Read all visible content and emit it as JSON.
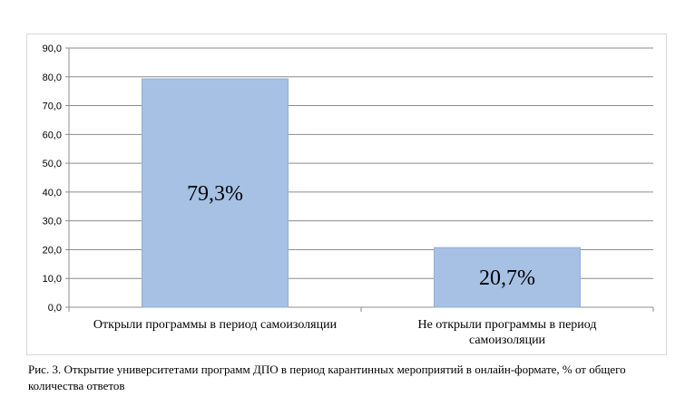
{
  "chart_data": {
    "type": "bar",
    "categories": [
      [
        "Открыли программы в период самоизоляции"
      ],
      [
        "Не открыли программы в период",
        "самоизоляции"
      ]
    ],
    "values": [
      79.3,
      20.7
    ],
    "data_labels": [
      "79,3%",
      "20,7%"
    ],
    "y_ticks": [
      "0,0",
      "10,0",
      "20,0",
      "30,0",
      "40,0",
      "50,0",
      "60,0",
      "70,0",
      "80,0",
      "90,0"
    ],
    "ylim": [
      0,
      90
    ],
    "grid": true,
    "bar_color": "#a6c1e3",
    "bar_edge_color": "#8fb0d9",
    "grid_color": "#8c8c8c"
  },
  "caption": "Рис. 3. Открытие университетами программ ДПО в период карантинных мероприятий в онлайн-формате, % от общего количества ответов"
}
